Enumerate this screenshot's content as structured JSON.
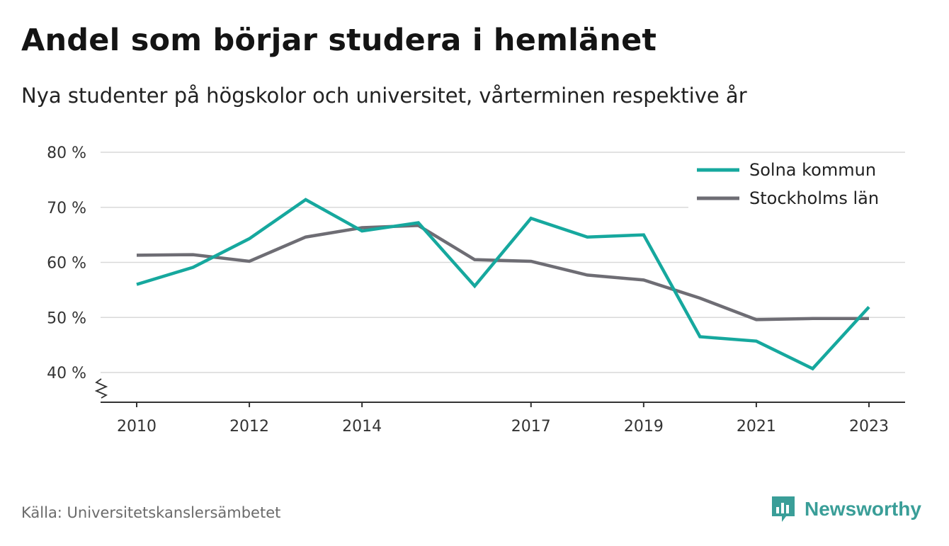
{
  "header": {
    "title": "Andel som börjar studera i hemlänet",
    "subtitle": "Nya studenter på högskolor och universitet, vårterminen respektive år"
  },
  "footer": {
    "source": "Källa: Universitetskanslersämbetet",
    "brand": "Newsworthy"
  },
  "colors": {
    "solna": "#16a89e",
    "stockholm": "#6e6d74",
    "grid": "#d9d9d9",
    "axis": "#333333",
    "brand": "#3a9e98"
  },
  "icons": {
    "axis_break": "zigzag-axis-break-icon",
    "brand_logo": "newsworthy-logo-icon"
  },
  "chart_data": {
    "type": "line",
    "title": "Andel som börjar studera i hemlänet",
    "subtitle": "Nya studenter på högskolor och universitet, vårterminen respektive år",
    "x": [
      2010,
      2011,
      2012,
      2013,
      2014,
      2015,
      2016,
      2017,
      2018,
      2019,
      2020,
      2021,
      2022,
      2023
    ],
    "x_ticks": [
      2010,
      2012,
      2014,
      2017,
      2019,
      2021,
      2023
    ],
    "y_ticks": [
      40,
      50,
      60,
      70,
      80
    ],
    "y_tick_labels": [
      "40 %",
      "50 %",
      "60 %",
      "70 %",
      "80 %"
    ],
    "ylim": [
      40,
      80
    ],
    "y_axis_break": true,
    "grid": true,
    "legend_position": "top-right",
    "series": [
      {
        "name": "Solna kommun",
        "color": "#16a89e",
        "values": [
          56.0,
          59.1,
          64.3,
          71.4,
          65.7,
          67.2,
          55.7,
          68.0,
          64.6,
          65.0,
          46.5,
          45.7,
          40.7,
          51.9
        ]
      },
      {
        "name": "Stockholms län",
        "color": "#6e6d74",
        "values": [
          61.3,
          61.4,
          60.2,
          64.6,
          66.3,
          66.7,
          60.5,
          60.2,
          57.7,
          56.8,
          53.5,
          49.6,
          49.8,
          49.8
        ]
      }
    ]
  }
}
